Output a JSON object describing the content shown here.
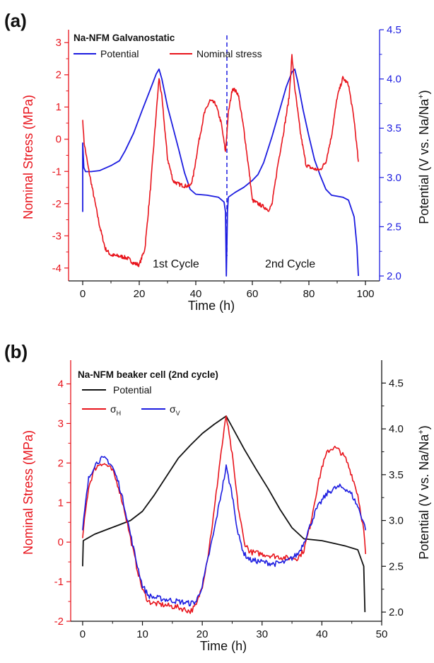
{
  "colors": {
    "stress": "#e8141c",
    "potential_a": "#1c1ce0",
    "potential_b": "#111111",
    "sigma_v": "#1c1ce0",
    "axis": "#111111"
  },
  "chart_data": [
    {
      "panel_label": "(a)",
      "type": "line",
      "title": "Na-NFM Galvanostatic",
      "xlabel": "Time (h)",
      "ylabel_left": "Nominal Stress (MPa)",
      "ylabel_right": {
        "prefix": "Potential (V vs. Na/Na",
        "sup": "+",
        "suffix": ")"
      },
      "xlim": [
        -5,
        105
      ],
      "ylim_left": [
        -4.4,
        3.4
      ],
      "ylim_right": [
        1.95,
        4.5
      ],
      "xticks": [
        0,
        20,
        40,
        60,
        80,
        100
      ],
      "yticks_left": [
        -4,
        -3,
        -2,
        -1,
        0,
        1,
        2,
        3
      ],
      "yticks_right": [
        2.0,
        2.5,
        3.0,
        3.5,
        4.0,
        4.5
      ],
      "grid": false,
      "legend": "top-left",
      "annotations": [
        "1st Cycle",
        "2nd Cycle"
      ],
      "divider_x": 51,
      "series": [
        {
          "name": "Potential",
          "axis": "right",
          "color": "#1c1ce0",
          "points": [
            [
              0,
              2.65
            ],
            [
              0,
              3.35
            ],
            [
              0.4,
              3.1
            ],
            [
              1,
              3.06
            ],
            [
              3,
              3.06
            ],
            [
              6,
              3.07
            ],
            [
              10,
              3.12
            ],
            [
              13,
              3.17
            ],
            [
              15,
              3.27
            ],
            [
              18,
              3.45
            ],
            [
              21,
              3.68
            ],
            [
              24,
              3.9
            ],
            [
              26,
              4.05
            ],
            [
              27,
              4.1
            ],
            [
              28,
              4.0
            ],
            [
              30,
              3.72
            ],
            [
              32,
              3.5
            ],
            [
              34,
              3.28
            ],
            [
              36,
              3.05
            ],
            [
              38,
              2.88
            ],
            [
              40,
              2.83
            ],
            [
              44,
              2.82
            ],
            [
              48,
              2.8
            ],
            [
              50,
              2.75
            ],
            [
              50.5,
              2.65
            ],
            [
              50.8,
              2.0
            ],
            [
              51.2,
              2.65
            ],
            [
              51.5,
              2.8
            ],
            [
              54,
              2.85
            ],
            [
              57,
              2.9
            ],
            [
              60,
              2.97
            ],
            [
              62,
              3.03
            ],
            [
              64,
              3.15
            ],
            [
              67,
              3.42
            ],
            [
              70,
              3.72
            ],
            [
              72,
              3.92
            ],
            [
              74,
              4.07
            ],
            [
              75,
              4.1
            ],
            [
              76,
              3.98
            ],
            [
              78,
              3.68
            ],
            [
              80,
              3.42
            ],
            [
              82,
              3.18
            ],
            [
              84,
              3.02
            ],
            [
              86,
              2.88
            ],
            [
              88,
              2.82
            ],
            [
              92,
              2.8
            ],
            [
              94,
              2.77
            ],
            [
              96,
              2.6
            ],
            [
              97,
              2.3
            ],
            [
              97.5,
              2.0
            ]
          ]
        },
        {
          "name": "Nominal stress",
          "axis": "left",
          "color": "#e8141c",
          "points": [
            [
              0,
              0.6
            ],
            [
              0.5,
              -0.1
            ],
            [
              2,
              -0.9
            ],
            [
              4,
              -1.8
            ],
            [
              6,
              -2.7
            ],
            [
              8,
              -3.4
            ],
            [
              10,
              -3.6
            ],
            [
              12,
              -3.62
            ],
            [
              14,
              -3.65
            ],
            [
              16,
              -3.7
            ],
            [
              18,
              -3.85
            ],
            [
              20,
              -3.9
            ],
            [
              22,
              -3.4
            ],
            [
              24,
              -1.5
            ],
            [
              26,
              0.8
            ],
            [
              27,
              1.9
            ],
            [
              28,
              1.3
            ],
            [
              30,
              -0.6
            ],
            [
              32,
              -1.3
            ],
            [
              34,
              -1.4
            ],
            [
              36,
              -1.45
            ],
            [
              38,
              -1.45
            ],
            [
              39,
              -1.2
            ],
            [
              41,
              -0.1
            ],
            [
              43,
              0.8
            ],
            [
              45,
              1.2
            ],
            [
              47,
              1.1
            ],
            [
              49,
              0.5
            ],
            [
              50.5,
              -0.4
            ],
            [
              51.5,
              0.8
            ],
            [
              53,
              1.6
            ],
            [
              55,
              1.4
            ],
            [
              57,
              0.3
            ],
            [
              59,
              -1.1
            ],
            [
              60,
              -1.9
            ],
            [
              62,
              -2.0
            ],
            [
              64,
              -2.1
            ],
            [
              66,
              -2.2
            ],
            [
              67,
              -2.0
            ],
            [
              69,
              -0.8
            ],
            [
              71,
              0.2
            ],
            [
              73,
              1.3
            ],
            [
              74,
              2.6
            ],
            [
              75,
              1.6
            ],
            [
              77,
              0.2
            ],
            [
              79,
              -0.8
            ],
            [
              81,
              -0.9
            ],
            [
              83,
              -0.95
            ],
            [
              84,
              -0.95
            ],
            [
              86,
              -0.7
            ],
            [
              88,
              0.1
            ],
            [
              90,
              1.3
            ],
            [
              92,
              1.9
            ],
            [
              94,
              1.7
            ],
            [
              96,
              0.6
            ],
            [
              97.5,
              -0.7
            ]
          ]
        }
      ]
    },
    {
      "panel_label": "(b)",
      "type": "line",
      "title": "Na-NFM beaker cell (2nd cycle)",
      "xlabel": "Time (h)",
      "ylabel_left": "Nominal Stress (MPa)",
      "ylabel_right": {
        "prefix": "Potential (V vs. Na/Na",
        "sup": "+",
        "suffix": ")"
      },
      "xlim": [
        -2,
        50
      ],
      "ylim_left": [
        -2,
        4.6
      ],
      "ylim_right": [
        1.9,
        4.75
      ],
      "xticks": [
        0,
        10,
        20,
        30,
        40,
        50
      ],
      "yticks_left": [
        -2,
        -1,
        0,
        1,
        2,
        3,
        4
      ],
      "yticks_right": [
        2.0,
        2.5,
        3.0,
        3.5,
        4.0,
        4.5
      ],
      "grid": false,
      "legend": "top-left",
      "legend_labels": {
        "sigma_h": {
          "base": "σ",
          "sub": "H"
        },
        "sigma_v": {
          "base": "σ",
          "sub": "V"
        }
      },
      "series": [
        {
          "name": "Potential",
          "axis": "right",
          "color": "#111111",
          "points": [
            [
              0,
              2.5
            ],
            [
              0.1,
              2.78
            ],
            [
              2,
              2.85
            ],
            [
              4,
              2.9
            ],
            [
              6,
              2.95
            ],
            [
              8,
              3.0
            ],
            [
              10,
              3.1
            ],
            [
              12,
              3.28
            ],
            [
              14,
              3.48
            ],
            [
              16,
              3.68
            ],
            [
              18,
              3.82
            ],
            [
              20,
              3.95
            ],
            [
              22,
              4.05
            ],
            [
              24,
              4.14
            ],
            [
              25,
              4.02
            ],
            [
              27,
              3.78
            ],
            [
              29,
              3.56
            ],
            [
              31,
              3.35
            ],
            [
              33,
              3.12
            ],
            [
              35,
              2.92
            ],
            [
              37,
              2.8
            ],
            [
              40,
              2.78
            ],
            [
              42,
              2.75
            ],
            [
              44,
              2.72
            ],
            [
              46,
              2.68
            ],
            [
              47,
              2.5
            ],
            [
              47.2,
              2.0
            ]
          ]
        },
        {
          "name": "σH",
          "axis": "left",
          "color": "#e8141c",
          "points": [
            [
              0,
              0.1
            ],
            [
              0.5,
              0.8
            ],
            [
              1,
              1.4
            ],
            [
              2,
              1.85
            ],
            [
              3,
              2.0
            ],
            [
              4,
              1.95
            ],
            [
              5,
              1.8
            ],
            [
              6,
              1.4
            ],
            [
              7,
              0.8
            ],
            [
              8,
              0.1
            ],
            [
              9,
              -0.6
            ],
            [
              10,
              -1.2
            ],
            [
              11,
              -1.5
            ],
            [
              12,
              -1.55
            ],
            [
              14,
              -1.6
            ],
            [
              16,
              -1.65
            ],
            [
              18,
              -1.75
            ],
            [
              19,
              -1.6
            ],
            [
              20,
              -1.1
            ],
            [
              21,
              -0.3
            ],
            [
              22,
              0.8
            ],
            [
              23,
              2.1
            ],
            [
              24,
              3.2
            ],
            [
              25,
              2.2
            ],
            [
              26,
              0.9
            ],
            [
              27,
              0.0
            ],
            [
              28,
              -0.25
            ],
            [
              30,
              -0.3
            ],
            [
              32,
              -0.35
            ],
            [
              34,
              -0.4
            ],
            [
              36,
              -0.4
            ],
            [
              37,
              -0.2
            ],
            [
              38,
              0.4
            ],
            [
              39,
              1.2
            ],
            [
              40,
              1.9
            ],
            [
              41,
              2.3
            ],
            [
              42,
              2.4
            ],
            [
              43,
              2.3
            ],
            [
              44,
              2.1
            ],
            [
              45,
              1.7
            ],
            [
              46,
              1.2
            ],
            [
              47,
              0.3
            ],
            [
              47.3,
              -0.3
            ]
          ]
        },
        {
          "name": "σV",
          "axis": "left",
          "color": "#1c1ce0",
          "points": [
            [
              0,
              0.3
            ],
            [
              0.5,
              1.0
            ],
            [
              1,
              1.6
            ],
            [
              2,
              1.95
            ],
            [
              3,
              2.1
            ],
            [
              4,
              2.1
            ],
            [
              5,
              1.9
            ],
            [
              6,
              1.5
            ],
            [
              7,
              0.9
            ],
            [
              8,
              0.2
            ],
            [
              9,
              -0.5
            ],
            [
              10,
              -1.1
            ],
            [
              11,
              -1.35
            ],
            [
              12,
              -1.4
            ],
            [
              14,
              -1.45
            ],
            [
              16,
              -1.5
            ],
            [
              18,
              -1.55
            ],
            [
              19,
              -1.5
            ],
            [
              20,
              -1.1
            ],
            [
              21,
              -0.4
            ],
            [
              22,
              0.3
            ],
            [
              23,
              1.1
            ],
            [
              24,
              1.9
            ],
            [
              25,
              1.2
            ],
            [
              26,
              0.2
            ],
            [
              27,
              -0.3
            ],
            [
              28,
              -0.45
            ],
            [
              30,
              -0.5
            ],
            [
              32,
              -0.55
            ],
            [
              34,
              -0.5
            ],
            [
              36,
              -0.3
            ],
            [
              37,
              0.0
            ],
            [
              38,
              0.4
            ],
            [
              39,
              0.8
            ],
            [
              40,
              1.05
            ],
            [
              41,
              1.25
            ],
            [
              42,
              1.35
            ],
            [
              43,
              1.4
            ],
            [
              44,
              1.35
            ],
            [
              45,
              1.2
            ],
            [
              46,
              0.9
            ],
            [
              47,
              0.5
            ],
            [
              47.3,
              0.3
            ]
          ]
        }
      ]
    }
  ]
}
